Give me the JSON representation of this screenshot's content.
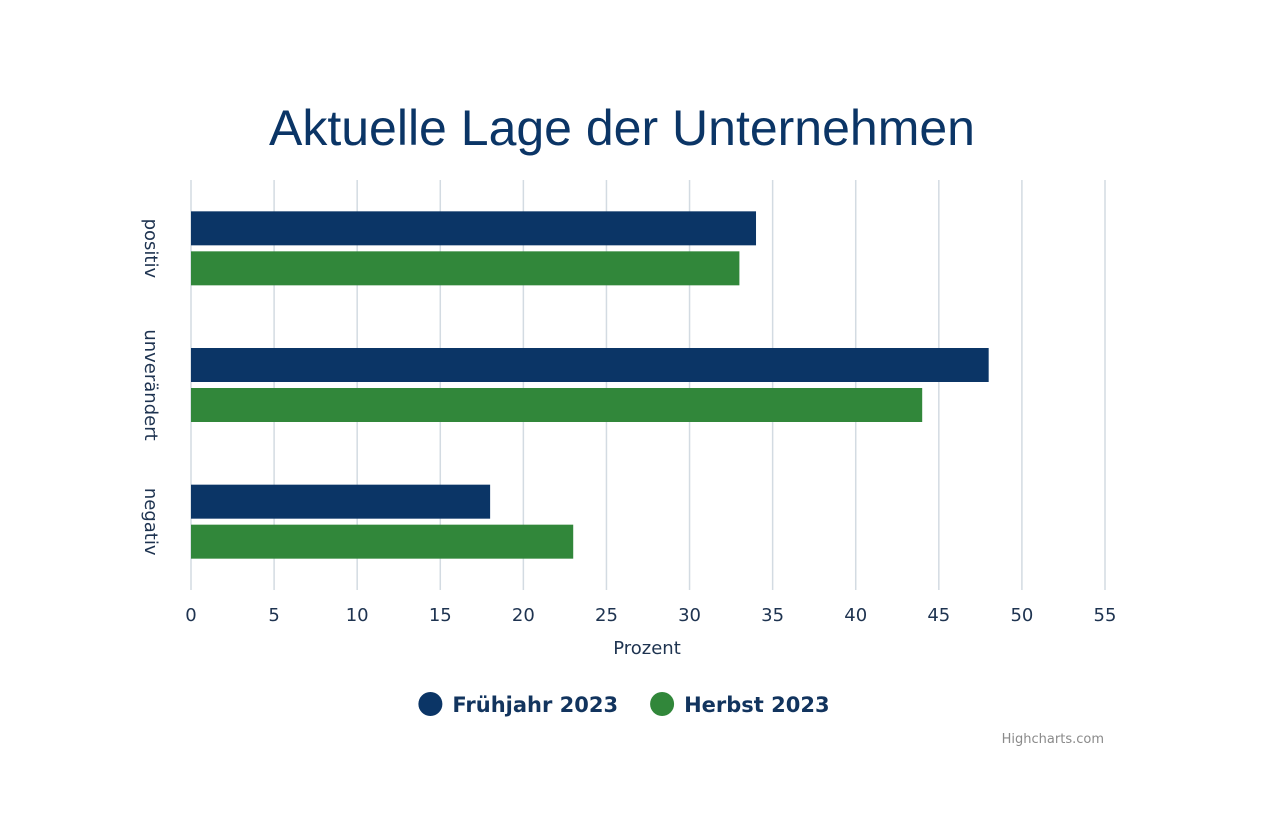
{
  "chart_data": {
    "type": "bar",
    "orientation": "horizontal",
    "title": "Aktuelle Lage der Unternehmen",
    "categories": [
      "positiv",
      "unverändert",
      "negativ"
    ],
    "series": [
      {
        "name": "Frühjahr 2023",
        "color": "#0b3566",
        "values": [
          34,
          48,
          18
        ]
      },
      {
        "name": "Herbst 2023",
        "color": "#31873a",
        "values": [
          33,
          44,
          23
        ]
      }
    ],
    "xlabel": "Prozent",
    "ylabel": "",
    "xlim": [
      0,
      55
    ],
    "xticks": [
      0,
      5,
      10,
      15,
      20,
      25,
      30,
      35,
      40,
      45,
      50,
      55
    ],
    "grid": true,
    "legend_position": "bottom-center"
  },
  "credits": "Highcharts.com"
}
